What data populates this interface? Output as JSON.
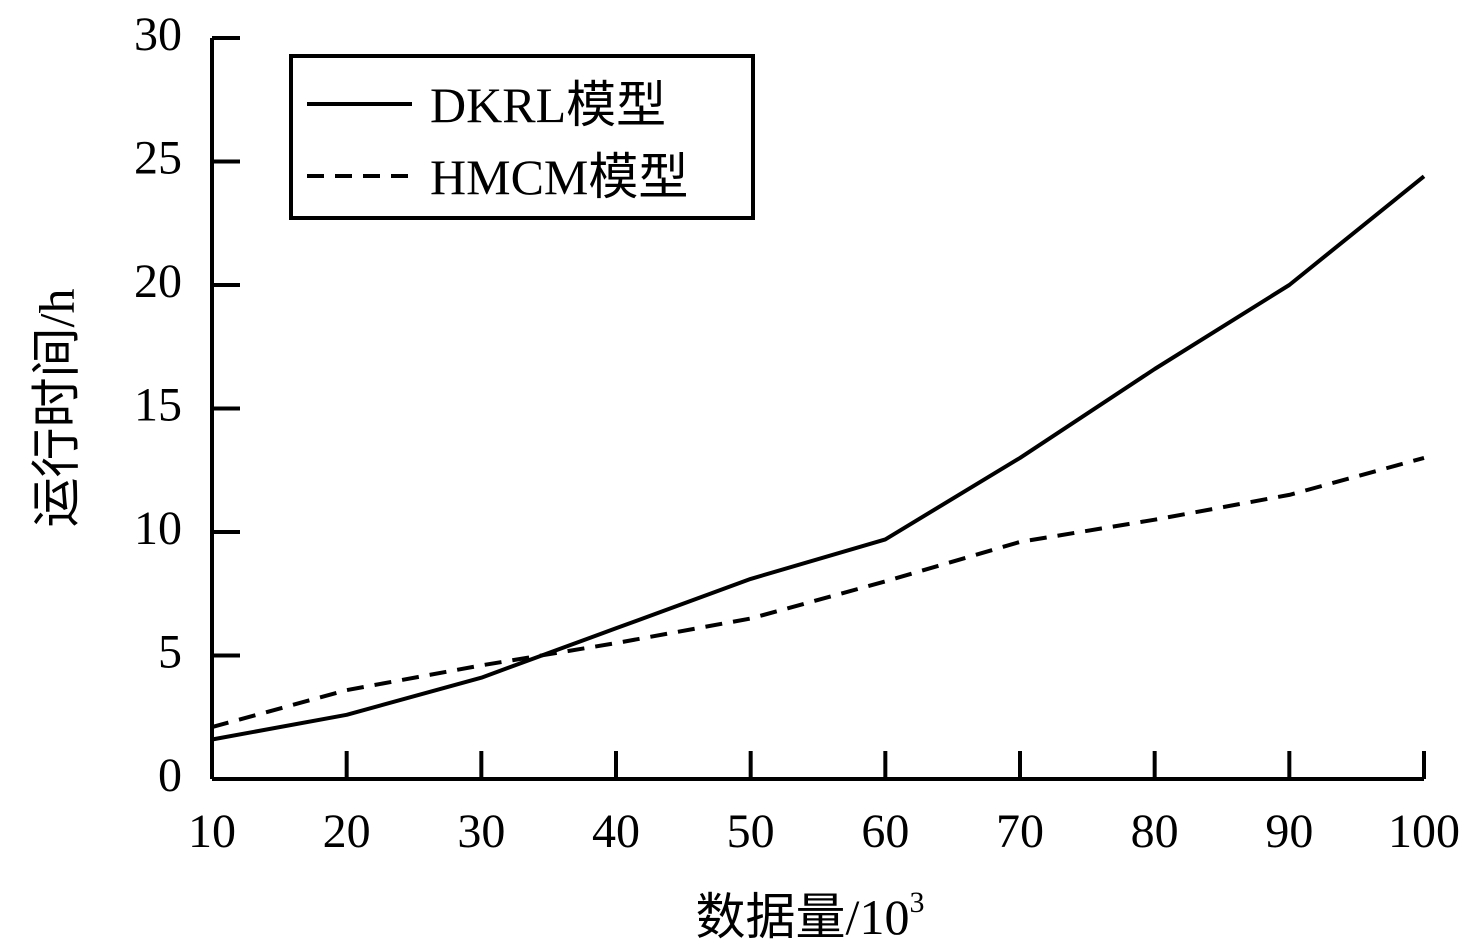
{
  "chart_data": {
    "type": "line",
    "x": [
      10,
      20,
      30,
      40,
      50,
      60,
      70,
      80,
      90,
      100
    ],
    "x_tick_labels": [
      "10",
      "20",
      "30",
      "40",
      "50",
      "60",
      "70",
      "80",
      "90",
      "100"
    ],
    "y_tick_labels": [
      "0",
      "5",
      "10",
      "15",
      "20",
      "25",
      "30"
    ],
    "xlim": [
      10,
      100
    ],
    "ylim": [
      0,
      30
    ],
    "xlabel": "数据量/10",
    "xlabel_superscript": "3",
    "ylabel": "运行时间/h",
    "title": "",
    "grid": false,
    "legend_position": "top-left",
    "series": [
      {
        "name": "DKRL模型",
        "style": "solid",
        "color": "#000000",
        "values": [
          1.6,
          2.6,
          4.1,
          6.1,
          8.1,
          9.7,
          13.0,
          16.6,
          20.0,
          24.4
        ]
      },
      {
        "name": "HMCM模型",
        "style": "dashed",
        "color": "#000000",
        "values": [
          2.1,
          3.6,
          4.6,
          5.5,
          6.5,
          8.0,
          9.6,
          10.5,
          11.5,
          13.0
        ]
      }
    ]
  }
}
